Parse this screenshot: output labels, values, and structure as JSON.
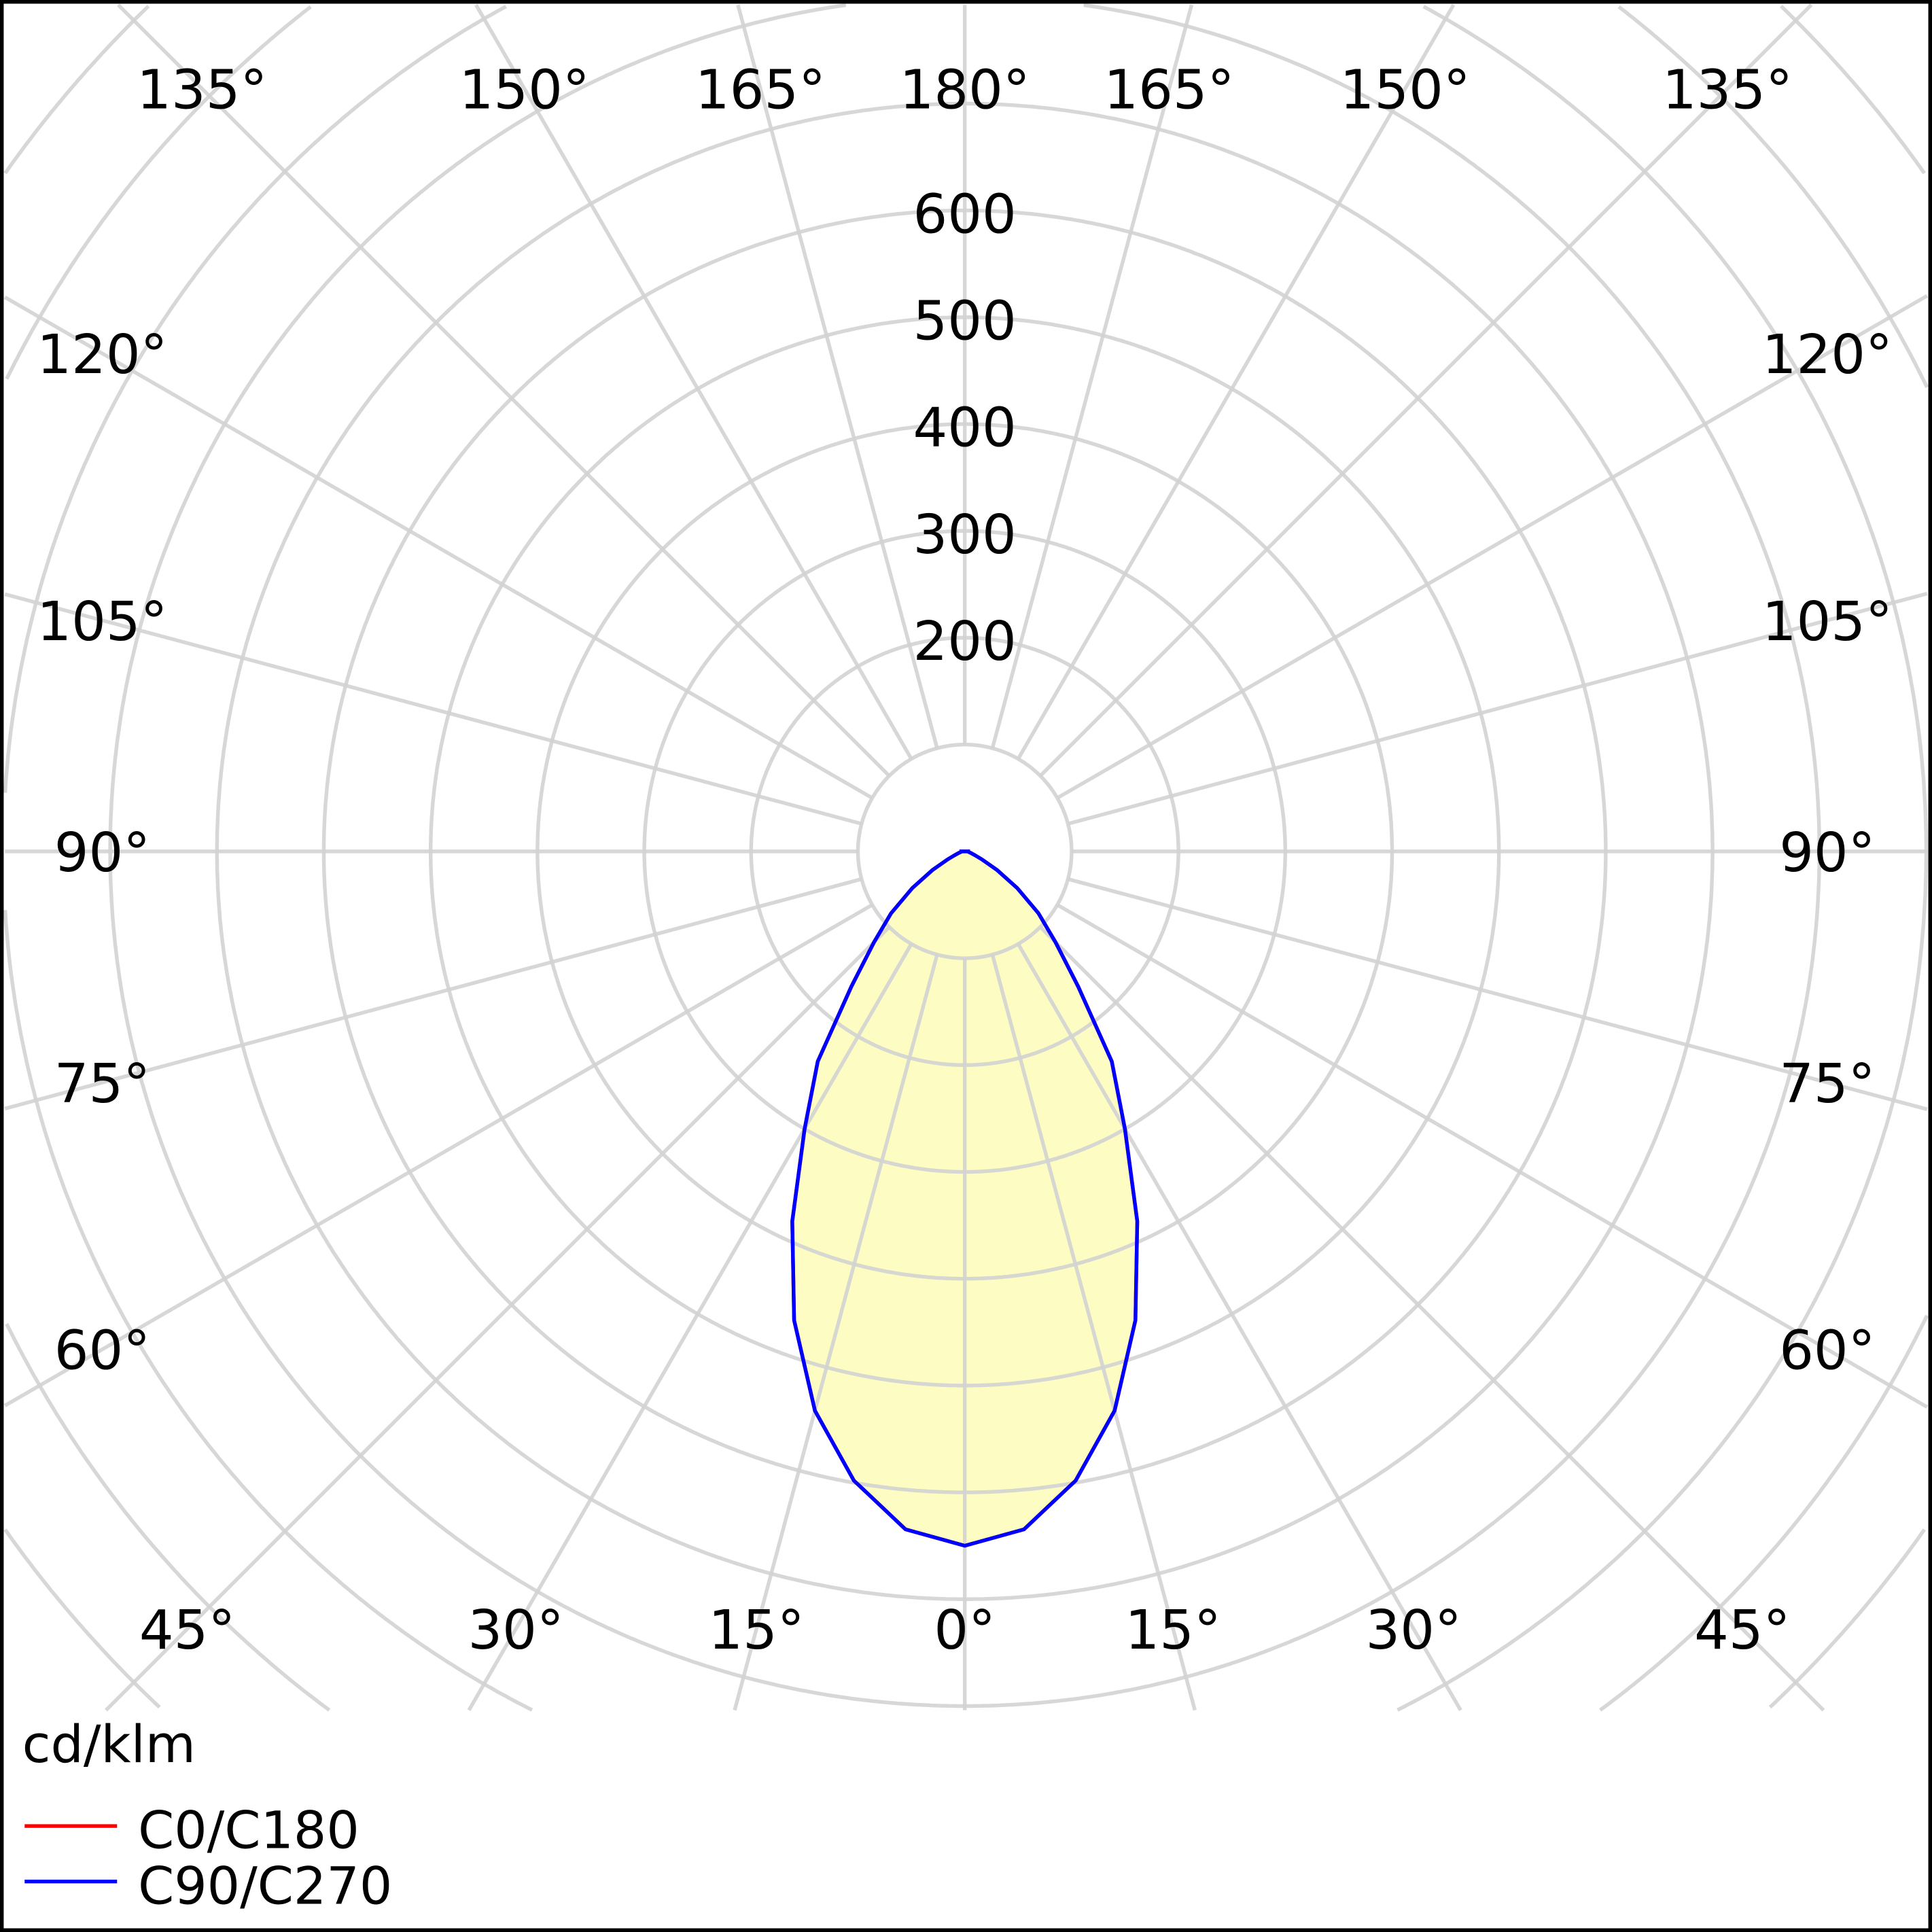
{
  "chart_data": {
    "type": "polar",
    "unit_label": "cd/klm",
    "radial_ticks": [
      200,
      300,
      400,
      500,
      600
    ],
    "radial_grid": [
      100,
      200,
      300,
      400,
      500,
      600,
      700,
      800,
      900,
      1000,
      1100
    ],
    "angle_step": 15,
    "angle_labels_left": [
      "0°",
      "15°",
      "30°",
      "45°",
      "60°",
      "75°",
      "90°",
      "105°",
      "120°",
      "135°",
      "150°",
      "165°",
      "180°"
    ],
    "angle_labels_right": [
      "15°",
      "30°",
      "45°",
      "60°",
      "75°",
      "90°",
      "105°",
      "120°",
      "135°",
      "150°",
      "165°"
    ],
    "grid": true,
    "legend_placement": "bottom-left",
    "angles": [
      0,
      5,
      10,
      15,
      20,
      25,
      30,
      35,
      40,
      45,
      50,
      55,
      60,
      65,
      70,
      75,
      80,
      85,
      90
    ],
    "series": [
      {
        "name": "C0/C180",
        "color": "#ff0000",
        "values": [
          650,
          637,
          598,
          542,
          467,
          382,
          300,
          240,
          165,
          120,
          90,
          60,
          35,
          18,
          10,
          6,
          4,
          3,
          5
        ]
      },
      {
        "name": "C90/C270",
        "color": "#0000ff",
        "values": [
          650,
          637,
          598,
          542,
          467,
          382,
          300,
          240,
          165,
          120,
          90,
          60,
          35,
          18,
          10,
          6,
          4,
          3,
          5
        ]
      }
    ],
    "fill_color": "#fdfdc3",
    "grid_color": "#d3d3d3"
  }
}
